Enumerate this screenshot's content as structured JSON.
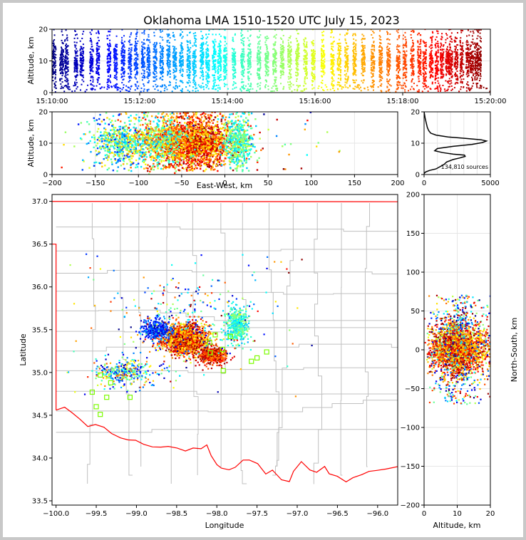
{
  "figure": {
    "title": "Oklahoma LMA 1510-1520 UTC July 15, 2023"
  },
  "chart_data": [
    {
      "id": "time-height",
      "type": "scatter",
      "ylabel": "Altitude, km",
      "xlim": [
        "15:10:00",
        "15:20:00"
      ],
      "ylim": [
        0,
        20
      ],
      "x_ticks": [
        "15:10:00",
        "15:12:00",
        "15:14:00",
        "15:16:00",
        "15:18:00",
        "15:20:00"
      ],
      "y_ticks": [
        "0",
        "10",
        "20"
      ],
      "color_encoding": "time (blue to red, jet)",
      "grid": true,
      "altitude_profile_km": {
        "core_min": 1,
        "core_max": 19,
        "peak": 10
      },
      "bursts_minutes_after_1510": [
        0.05,
        0.22,
        0.33,
        0.55,
        0.68,
        0.9,
        1.05,
        1.3,
        1.45,
        1.62,
        1.78,
        1.92,
        2.08,
        2.2,
        2.35,
        2.5,
        2.66,
        2.8,
        2.95,
        3.12,
        3.25,
        3.42,
        3.55,
        3.7,
        3.82,
        3.95,
        4.15,
        4.35,
        4.5,
        4.72,
        4.9,
        5.08,
        5.25,
        5.42,
        5.6,
        5.78,
        5.96,
        6.18,
        6.4,
        6.55,
        6.72,
        6.9,
        7.1,
        7.32,
        7.5,
        7.68,
        7.9,
        8.05,
        8.22,
        8.38,
        8.5,
        8.65,
        8.78,
        8.9,
        9.02,
        9.1,
        9.22,
        9.35,
        9.48,
        9.58,
        9.68,
        9.75
      ]
    },
    {
      "id": "east-west-altitude",
      "type": "scatter",
      "xlabel": "East-West, km",
      "ylabel": "Altitude, km",
      "xlim": [
        -200,
        200
      ],
      "ylim": [
        0,
        20
      ],
      "x_ticks": [
        "−200",
        "−150",
        "−100",
        "−50",
        "0",
        "50",
        "100",
        "150",
        "200"
      ],
      "y_ticks": [
        "0",
        "10",
        "20"
      ],
      "grid": true,
      "clusters": [
        {
          "x_center": -35,
          "x_spread": 30,
          "time_range": [
            0.6,
            1.0
          ],
          "share": 0.55
        },
        {
          "x_center": -80,
          "x_spread": 30,
          "time_range": [
            0.3,
            0.85
          ],
          "share": 0.2
        },
        {
          "x_center": -125,
          "x_spread": 22,
          "time_range": [
            0.15,
            0.7
          ],
          "share": 0.12
        },
        {
          "x_center": 15,
          "x_spread": 12,
          "time_range": [
            0.3,
            0.6
          ],
          "share": 0.13
        }
      ]
    },
    {
      "id": "altitude-histogram",
      "type": "line",
      "xlim": [
        0,
        5000
      ],
      "ylim": [
        0,
        20
      ],
      "x_ticks": [
        "0",
        "5000"
      ],
      "y_ticks": [
        "0",
        "10",
        "20"
      ],
      "annotation": "134,810 sources",
      "profile": [
        [
          0,
          0.3
        ],
        [
          100,
          0.8
        ],
        [
          400,
          1.3
        ],
        [
          900,
          1.8
        ],
        [
          1200,
          2.5
        ],
        [
          1500,
          3.2
        ],
        [
          1700,
          4.0
        ],
        [
          2200,
          4.8
        ],
        [
          2700,
          5.3
        ],
        [
          3100,
          5.8
        ],
        [
          3050,
          6.2
        ],
        [
          2200,
          6.5
        ],
        [
          1400,
          7.0
        ],
        [
          800,
          7.6
        ],
        [
          1000,
          8.3
        ],
        [
          2200,
          9.0
        ],
        [
          3600,
          9.6
        ],
        [
          4400,
          10.2
        ],
        [
          4700,
          10.7
        ],
        [
          4300,
          11.1
        ],
        [
          3200,
          11.5
        ],
        [
          1800,
          12.0
        ],
        [
          900,
          12.6
        ],
        [
          500,
          13.2
        ],
        [
          350,
          14.0
        ],
        [
          250,
          15.0
        ],
        [
          160,
          16.5
        ],
        [
          80,
          18.0
        ],
        [
          20,
          19.5
        ],
        [
          0,
          20
        ]
      ]
    },
    {
      "id": "plan-view",
      "type": "scatter",
      "xlabel": "Longitude",
      "ylabel": "Latitude",
      "xlim": [
        -100.05,
        -95.75
      ],
      "ylim": [
        33.45,
        37.08
      ],
      "x_ticks": [
        "−100.0",
        "−99.5",
        "−99.0",
        "−98.5",
        "−98.0",
        "−97.5",
        "−97.0",
        "−96.5",
        "−96.0"
      ],
      "y_ticks": [
        "33.5",
        "34.0",
        "34.5",
        "35.0",
        "35.5",
        "36.0",
        "36.5",
        "37.0"
      ],
      "grid": false,
      "boundary_color": "#ff0000",
      "county_color": "#c0c0c0",
      "clusters": [
        {
          "lon": -98.4,
          "lat": 35.38,
          "lon_spread": 0.2,
          "lat_spread": 0.12,
          "time_range": [
            0.6,
            1.0
          ],
          "share": 0.45
        },
        {
          "lon": -98.05,
          "lat": 35.2,
          "lon_spread": 0.12,
          "lat_spread": 0.07,
          "time_range": [
            0.72,
            1.0
          ],
          "share": 0.15
        },
        {
          "lon": -98.75,
          "lat": 35.5,
          "lon_spread": 0.13,
          "lat_spread": 0.08,
          "time_range": [
            0.05,
            0.3
          ],
          "share": 0.1
        },
        {
          "lon": -97.75,
          "lat": 35.55,
          "lon_spread": 0.1,
          "lat_spread": 0.15,
          "time_range": [
            0.3,
            0.55
          ],
          "share": 0.12
        },
        {
          "lon": -99.15,
          "lat": 35.0,
          "lon_spread": 0.25,
          "lat_spread": 0.12,
          "time_range": [
            0.05,
            0.8
          ],
          "share": 0.1
        },
        {
          "lon": -98.4,
          "lat": 35.6,
          "lon_spread": 0.5,
          "lat_spread": 0.35,
          "time_range": [
            0.0,
            1.0
          ],
          "share": 0.08
        }
      ],
      "stations": [
        {
          "lon": -99.45,
          "lat": 34.97
        },
        {
          "lon": -99.32,
          "lat": 34.88
        },
        {
          "lon": -99.5,
          "lat": 34.6
        },
        {
          "lon": -99.45,
          "lat": 34.51
        },
        {
          "lon": -99.37,
          "lat": 34.71
        },
        {
          "lon": -99.08,
          "lat": 34.71
        },
        {
          "lon": -99.55,
          "lat": 34.77
        },
        {
          "lon": -97.92,
          "lat": 35.02
        },
        {
          "lon": -97.93,
          "lat": 35.27
        },
        {
          "lon": -97.57,
          "lat": 35.13
        },
        {
          "lon": -97.5,
          "lat": 35.17
        },
        {
          "lon": -97.38,
          "lat": 35.24
        },
        {
          "lon": -98.02,
          "lat": 35.44
        },
        {
          "lon": -97.83,
          "lat": 35.42
        },
        {
          "lon": -98.08,
          "lat": 35.23
        },
        {
          "lon": -98.09,
          "lat": 35.35
        }
      ]
    },
    {
      "id": "altitude-north-south",
      "type": "scatter",
      "xlabel": "Altitude, km",
      "ylabel": "North-South, km",
      "xlim": [
        0,
        20
      ],
      "ylim": [
        -200,
        200
      ],
      "x_ticks": [
        "0",
        "10",
        "20"
      ],
      "y_ticks": [
        "200",
        "150",
        "100",
        "50",
        "0",
        "−50",
        "−100",
        "−150",
        "−200"
      ],
      "grid": true
    }
  ]
}
